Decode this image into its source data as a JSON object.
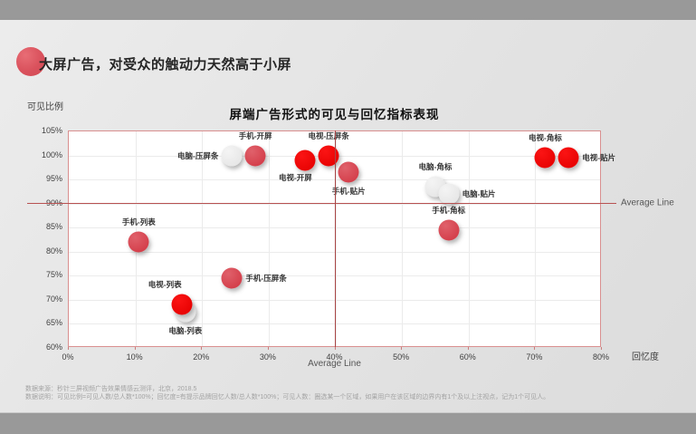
{
  "slide": {
    "title": "大屏广告，对受众的触动力天然高于小屏",
    "footer": {
      "source_line": "数据来源：秒针三屏视频广告效果情感云测评，北京，2018.5",
      "note_line": "数据说明：可见比例=可见人数/总人数*100%；回忆度=有提示品牌回忆人数/总人数*100%；可见人数：圈选某一个区域，如果用户在该区域的边界内有1个及以上注视点，记为1个可见人。"
    }
  },
  "chart_data": {
    "type": "scatter",
    "title": "屏端广告形式的可见与回忆指标表现",
    "xlabel": "回忆度",
    "ylabel": "可见比例",
    "xlim": [
      0,
      80
    ],
    "ylim": [
      60,
      105
    ],
    "x_ticks": [
      "0%",
      "10%",
      "20%",
      "30%",
      "40%",
      "50%",
      "60%",
      "70%",
      "80%"
    ],
    "x_tick_values": [
      0,
      10,
      20,
      30,
      40,
      50,
      60,
      70,
      80
    ],
    "y_ticks": [
      "105%",
      "100%",
      "95%",
      "90%",
      "85%",
      "80%",
      "75%",
      "70%",
      "65%",
      "60%"
    ],
    "y_tick_values": [
      105,
      100,
      95,
      90,
      85,
      80,
      75,
      70,
      65,
      60
    ],
    "grid": "on",
    "average_line_label": "Average Line",
    "average_x": 40,
    "average_y": 90,
    "series": [
      {
        "name": "电脑",
        "color_inner": "#f4f4f4",
        "color_outer": "#e7e7e7",
        "points": [
          {
            "label": "电脑-压屏条",
            "x": 24.5,
            "y": 100,
            "label_pos": "left"
          },
          {
            "label": "电脑-角标",
            "x": 55,
            "y": 93.5,
            "label_pos": "above"
          },
          {
            "label": "电脑-贴片",
            "x": 57,
            "y": 92,
            "label_pos": "right"
          },
          {
            "label": "电脑-列表",
            "x": 17.5,
            "y": 67.5,
            "label_pos": "below"
          }
        ]
      },
      {
        "name": "手机",
        "color_inner": "#e0616b",
        "color_outer": "#d43f4b",
        "points": [
          {
            "label": "手机-开屏",
            "x": 28,
            "y": 100,
            "label_pos": "above"
          },
          {
            "label": "手机-贴片",
            "x": 42,
            "y": 96.5,
            "label_pos": "below"
          },
          {
            "label": "手机-角标",
            "x": 57,
            "y": 84.5,
            "label_pos": "above"
          },
          {
            "label": "手机-列表",
            "x": 10.5,
            "y": 82,
            "label_pos": "above"
          },
          {
            "label": "手机-压屏条",
            "x": 24.5,
            "y": 74.5,
            "label_pos": "right"
          }
        ]
      },
      {
        "name": "电视",
        "color_inner": "#fb1414",
        "color_outer": "#e80303",
        "points": [
          {
            "label": "电视-压屏条",
            "x": 39,
            "y": 100,
            "label_pos": "above"
          },
          {
            "label": "电视-开屏",
            "x": 35.5,
            "y": 99,
            "label_pos": "below-left"
          },
          {
            "label": "电视-角标",
            "x": 71.5,
            "y": 99.5,
            "label_pos": "above"
          },
          {
            "label": "电视-贴片",
            "x": 75,
            "y": 99.5,
            "label_pos": "right"
          },
          {
            "label": "电视-列表",
            "x": 17,
            "y": 69,
            "label_pos": "above-left"
          }
        ]
      }
    ]
  }
}
